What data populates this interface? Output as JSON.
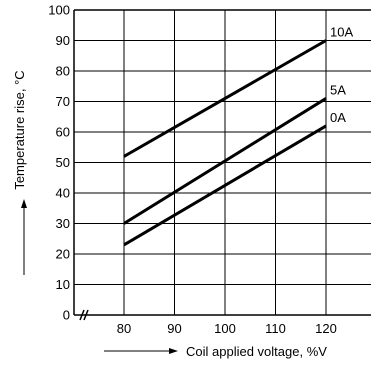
{
  "chart_data": {
    "type": "line",
    "title": "",
    "xlabel": "Coil applied voltage, %V",
    "ylabel": "Temperature rise, °C",
    "xlim": [
      80,
      120
    ],
    "ylim": [
      0,
      100
    ],
    "x_ticks": [
      80,
      90,
      100,
      110,
      120
    ],
    "y_ticks": [
      0,
      10,
      20,
      30,
      40,
      50,
      60,
      70,
      80,
      90,
      100
    ],
    "x_axis_break": true,
    "grid": true,
    "series": [
      {
        "name": "10A",
        "x": [
          80,
          120
        ],
        "y": [
          52,
          90
        ]
      },
      {
        "name": "5A",
        "x": [
          80,
          120
        ],
        "y": [
          30,
          71
        ]
      },
      {
        "name": "0A",
        "x": [
          80,
          120
        ],
        "y": [
          23,
          62
        ]
      }
    ]
  }
}
